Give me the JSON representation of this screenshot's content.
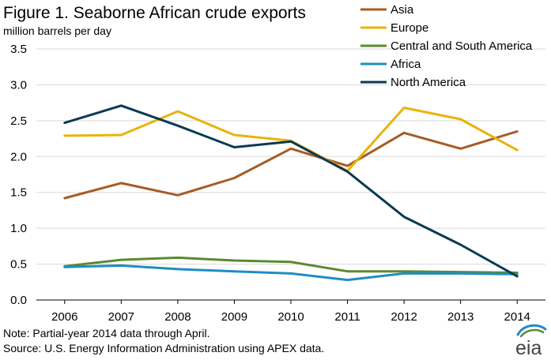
{
  "chart_data": {
    "type": "line",
    "title": "Figure 1. Seaborne African crude exports",
    "subtitle": "million barrels per day",
    "x": [
      "2006",
      "2007",
      "2008",
      "2009",
      "2010",
      "2011",
      "2012",
      "2013",
      "2014"
    ],
    "ylim": [
      0,
      3.5
    ],
    "yticks": [
      "0.0",
      "0.5",
      "1.0",
      "1.5",
      "2.0",
      "2.5",
      "3.0",
      "3.5"
    ],
    "grid": "horizontal",
    "legend_position": "top-right",
    "series": [
      {
        "name": "Asia",
        "color": "#a65c25",
        "values": [
          1.42,
          1.63,
          1.46,
          1.7,
          2.11,
          1.87,
          2.33,
          2.11,
          2.35
        ]
      },
      {
        "name": "Europe",
        "color": "#e8b40b",
        "values": [
          2.29,
          2.3,
          2.63,
          2.3,
          2.22,
          1.8,
          2.68,
          2.52,
          2.09
        ]
      },
      {
        "name": "Central and South America",
        "color": "#5b8a2e",
        "values": [
          0.47,
          0.56,
          0.59,
          0.55,
          0.53,
          0.4,
          0.4,
          0.39,
          0.38
        ]
      },
      {
        "name": "Africa",
        "color": "#1e8dc4",
        "values": [
          0.46,
          0.48,
          0.43,
          0.4,
          0.37,
          0.28,
          0.37,
          0.37,
          0.36
        ]
      },
      {
        "name": "North America",
        "color": "#0b3a52",
        "values": [
          2.47,
          2.71,
          2.43,
          2.13,
          2.21,
          1.79,
          1.16,
          0.77,
          0.33
        ]
      }
    ]
  },
  "footer": {
    "note": "Note: Partial-year 2014 data through April.",
    "source": "Source: U.S. Energy Information Administration using APEX data."
  },
  "logo": {
    "text": "eia",
    "icon": "eia-logo-icon",
    "colors": [
      "#1e8dc4",
      "#5b8a2e"
    ]
  }
}
